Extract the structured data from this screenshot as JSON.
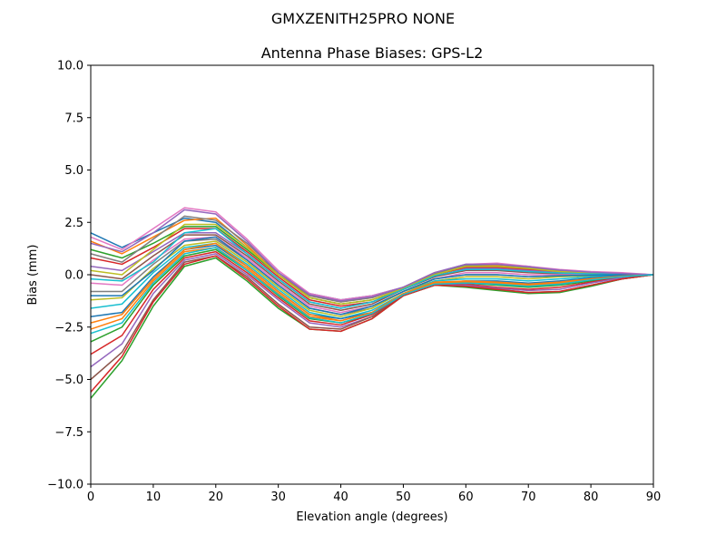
{
  "chart_data": {
    "type": "line",
    "suptitle": "GMXZENITH25PRO  NONE",
    "title": "Antenna Phase Biases: GPS-L2",
    "xlabel": "Elevation angle (degrees)",
    "ylabel": "Bias (mm)",
    "xlim": [
      0,
      90
    ],
    "ylim": [
      -10,
      10
    ],
    "xticks": [
      0,
      10,
      20,
      30,
      40,
      50,
      60,
      70,
      80,
      90
    ],
    "xtick_labels": [
      "0",
      "10",
      "20",
      "30",
      "40",
      "50",
      "60",
      "70",
      "80",
      "90"
    ],
    "yticks": [
      -10,
      -7.5,
      -5,
      -2.5,
      0,
      2.5,
      5,
      7.5,
      10
    ],
    "ytick_labels": [
      "−10.0",
      "−7.5",
      "−5.0",
      "−2.5",
      "0.0",
      "2.5",
      "5.0",
      "7.5",
      "10.0"
    ],
    "grid": false,
    "legend": "none",
    "x": [
      0,
      5,
      10,
      15,
      20,
      25,
      30,
      35,
      40,
      45,
      50,
      55,
      60,
      65,
      70,
      75,
      80,
      85,
      90
    ],
    "series": [
      {
        "color": "#1f77b4",
        "values": [
          2.0,
          1.3,
          2.0,
          2.7,
          2.5,
          1.3,
          0.1,
          -0.9,
          -1.2,
          -1.0,
          -0.6,
          0.1,
          0.5,
          0.5,
          0.4,
          0.2,
          0.1,
          0.05,
          0.0
        ]
      },
      {
        "color": "#ff7f0e",
        "values": [
          1.6,
          1.0,
          1.8,
          2.6,
          2.7,
          1.4,
          0.0,
          -1.0,
          -1.3,
          -1.1,
          -0.6,
          0.1,
          0.45,
          0.45,
          0.35,
          0.2,
          0.1,
          0.05,
          0.0
        ]
      },
      {
        "color": "#2ca02c",
        "values": [
          1.2,
          0.8,
          1.5,
          2.3,
          2.3,
          1.2,
          0.0,
          -1.1,
          -1.4,
          -1.2,
          -0.7,
          0.0,
          0.4,
          0.4,
          0.3,
          0.15,
          0.1,
          0.05,
          0.0
        ]
      },
      {
        "color": "#d62728",
        "values": [
          0.8,
          0.5,
          1.3,
          2.2,
          2.2,
          1.1,
          -0.1,
          -1.2,
          -1.5,
          -1.3,
          -0.7,
          0.0,
          0.35,
          0.35,
          0.25,
          0.1,
          0.05,
          0.03,
          0.0
        ]
      },
      {
        "color": "#9467bd",
        "values": [
          0.4,
          0.2,
          1.1,
          2.0,
          2.0,
          1.0,
          -0.2,
          -1.3,
          -1.6,
          -1.3,
          -0.7,
          -0.1,
          0.3,
          0.3,
          0.2,
          0.1,
          0.05,
          0.03,
          0.0
        ]
      },
      {
        "color": "#8c564b",
        "values": [
          0.0,
          -0.2,
          0.9,
          1.9,
          1.9,
          0.9,
          -0.3,
          -1.4,
          -1.7,
          -1.4,
          -0.7,
          -0.1,
          0.2,
          0.2,
          0.1,
          0.05,
          0.03,
          0.02,
          0.0
        ]
      },
      {
        "color": "#e377c2",
        "values": [
          -0.4,
          -0.5,
          0.7,
          1.7,
          1.8,
          0.8,
          -0.4,
          -1.5,
          -1.8,
          -1.5,
          -0.8,
          -0.2,
          0.1,
          0.1,
          0.0,
          0.0,
          0.0,
          0.0,
          0.0
        ]
      },
      {
        "color": "#7f7f7f",
        "values": [
          -0.8,
          -0.8,
          0.5,
          1.6,
          1.7,
          0.7,
          -0.5,
          -1.6,
          -1.9,
          -1.6,
          -0.8,
          -0.2,
          0.0,
          0.0,
          -0.1,
          -0.05,
          -0.03,
          0.0,
          0.0
        ]
      },
      {
        "color": "#bcbd22",
        "values": [
          -1.2,
          -1.1,
          0.3,
          1.4,
          1.6,
          0.6,
          -0.6,
          -1.7,
          -2.0,
          -1.6,
          -0.8,
          -0.3,
          -0.1,
          -0.1,
          -0.2,
          -0.1,
          -0.05,
          -0.02,
          0.0
        ]
      },
      {
        "color": "#17becf",
        "values": [
          -1.6,
          -1.4,
          0.1,
          1.3,
          1.5,
          0.5,
          -0.7,
          -1.8,
          -2.1,
          -1.7,
          -0.9,
          -0.3,
          -0.2,
          -0.2,
          -0.3,
          -0.2,
          -0.1,
          -0.03,
          0.0
        ]
      },
      {
        "color": "#1f77b4",
        "values": [
          -2.0,
          -1.8,
          -0.1,
          1.2,
          1.4,
          0.4,
          -0.8,
          -1.9,
          -2.1,
          -1.8,
          -0.9,
          -0.4,
          -0.3,
          -0.3,
          -0.4,
          -0.3,
          -0.15,
          -0.05,
          0.0
        ]
      },
      {
        "color": "#ff7f0e",
        "values": [
          -2.6,
          -2.1,
          -0.3,
          1.1,
          1.3,
          0.3,
          -0.9,
          -2.0,
          -2.2,
          -1.8,
          -0.9,
          -0.4,
          -0.35,
          -0.4,
          -0.5,
          -0.4,
          -0.2,
          -0.08,
          0.0
        ]
      },
      {
        "color": "#2ca02c",
        "values": [
          -3.2,
          -2.5,
          -0.5,
          0.9,
          1.2,
          0.2,
          -1.0,
          -2.1,
          -2.3,
          -1.9,
          -1.0,
          -0.5,
          -0.4,
          -0.5,
          -0.6,
          -0.5,
          -0.3,
          -0.1,
          0.0
        ]
      },
      {
        "color": "#d62728",
        "values": [
          -3.8,
          -2.9,
          -0.7,
          0.8,
          1.1,
          0.1,
          -1.1,
          -2.2,
          -2.4,
          -1.9,
          -1.0,
          -0.5,
          -0.45,
          -0.6,
          -0.7,
          -0.6,
          -0.35,
          -0.12,
          0.0
        ]
      },
      {
        "color": "#9467bd",
        "values": [
          -4.4,
          -3.3,
          -0.9,
          0.7,
          1.0,
          0.0,
          -1.2,
          -2.3,
          -2.5,
          -2.0,
          -1.0,
          -0.5,
          -0.5,
          -0.65,
          -0.75,
          -0.7,
          -0.4,
          -0.15,
          0.0
        ]
      },
      {
        "color": "#8c564b",
        "values": [
          -5.0,
          -3.7,
          -1.2,
          0.6,
          0.9,
          -0.1,
          -1.4,
          -2.5,
          -2.6,
          -2.0,
          -1.0,
          -0.5,
          -0.55,
          -0.7,
          -0.85,
          -0.8,
          -0.5,
          -0.2,
          0.0
        ]
      },
      {
        "color": "#e377c2",
        "values": [
          1.8,
          1.2,
          2.2,
          3.2,
          3.0,
          1.7,
          0.2,
          -0.9,
          -1.2,
          -1.0,
          -0.6,
          0.1,
          0.5,
          0.55,
          0.4,
          0.25,
          0.15,
          0.1,
          0.0
        ]
      },
      {
        "color": "#7f7f7f",
        "values": [
          1.0,
          0.6,
          1.7,
          2.8,
          2.6,
          1.5,
          0.1,
          -1.0,
          -1.3,
          -1.1,
          -0.6,
          0.05,
          0.45,
          0.5,
          0.35,
          0.2,
          0.1,
          0.05,
          0.0
        ]
      },
      {
        "color": "#bcbd22",
        "values": [
          0.2,
          0.0,
          1.2,
          2.4,
          2.4,
          1.3,
          0.0,
          -1.1,
          -1.4,
          -1.2,
          -0.65,
          0.0,
          0.4,
          0.4,
          0.3,
          0.15,
          0.1,
          0.04,
          0.0
        ]
      },
      {
        "color": "#17becf",
        "values": [
          -0.2,
          -0.3,
          0.6,
          2.0,
          2.2,
          1.0,
          -0.2,
          -1.3,
          -1.6,
          -1.3,
          -0.7,
          -0.05,
          0.25,
          0.25,
          0.15,
          0.08,
          0.04,
          0.02,
          0.0
        ]
      },
      {
        "color": "#1f77b4",
        "values": [
          -1.0,
          -1.0,
          0.2,
          1.6,
          1.8,
          0.7,
          -0.5,
          -1.6,
          -1.9,
          -1.5,
          -0.8,
          -0.2,
          0.0,
          0.0,
          -0.1,
          -0.05,
          -0.02,
          0.0,
          0.0
        ]
      },
      {
        "color": "#ff7f0e",
        "values": [
          -2.3,
          -1.9,
          -0.2,
          1.2,
          1.5,
          0.4,
          -0.8,
          -1.9,
          -2.2,
          -1.8,
          -0.9,
          -0.35,
          -0.3,
          -0.35,
          -0.45,
          -0.35,
          -0.2,
          -0.07,
          0.0
        ]
      },
      {
        "color": "#2ca02c",
        "values": [
          -5.9,
          -4.1,
          -1.5,
          0.4,
          0.8,
          -0.3,
          -1.6,
          -2.6,
          -2.7,
          -2.1,
          -1.0,
          -0.5,
          -0.6,
          -0.75,
          -0.9,
          -0.85,
          -0.55,
          -0.2,
          0.0
        ]
      },
      {
        "color": "#d62728",
        "values": [
          -5.6,
          -3.9,
          -1.3,
          0.5,
          0.9,
          -0.2,
          -1.5,
          -2.6,
          -2.7,
          -2.1,
          -1.0,
          -0.5,
          -0.55,
          -0.7,
          -0.85,
          -0.8,
          -0.5,
          -0.2,
          0.0
        ]
      },
      {
        "color": "#9467bd",
        "values": [
          1.5,
          1.1,
          2.0,
          3.1,
          2.9,
          1.6,
          0.1,
          -0.95,
          -1.25,
          -1.05,
          -0.6,
          0.1,
          0.5,
          0.5,
          0.38,
          0.22,
          0.12,
          0.06,
          0.0
        ]
      },
      {
        "color": "#17becf",
        "values": [
          -2.8,
          -2.3,
          -0.4,
          1.0,
          1.3,
          0.2,
          -0.95,
          -2.05,
          -2.3,
          -1.85,
          -0.95,
          -0.45,
          -0.4,
          -0.45,
          -0.55,
          -0.45,
          -0.25,
          -0.09,
          0.0
        ]
      }
    ]
  }
}
